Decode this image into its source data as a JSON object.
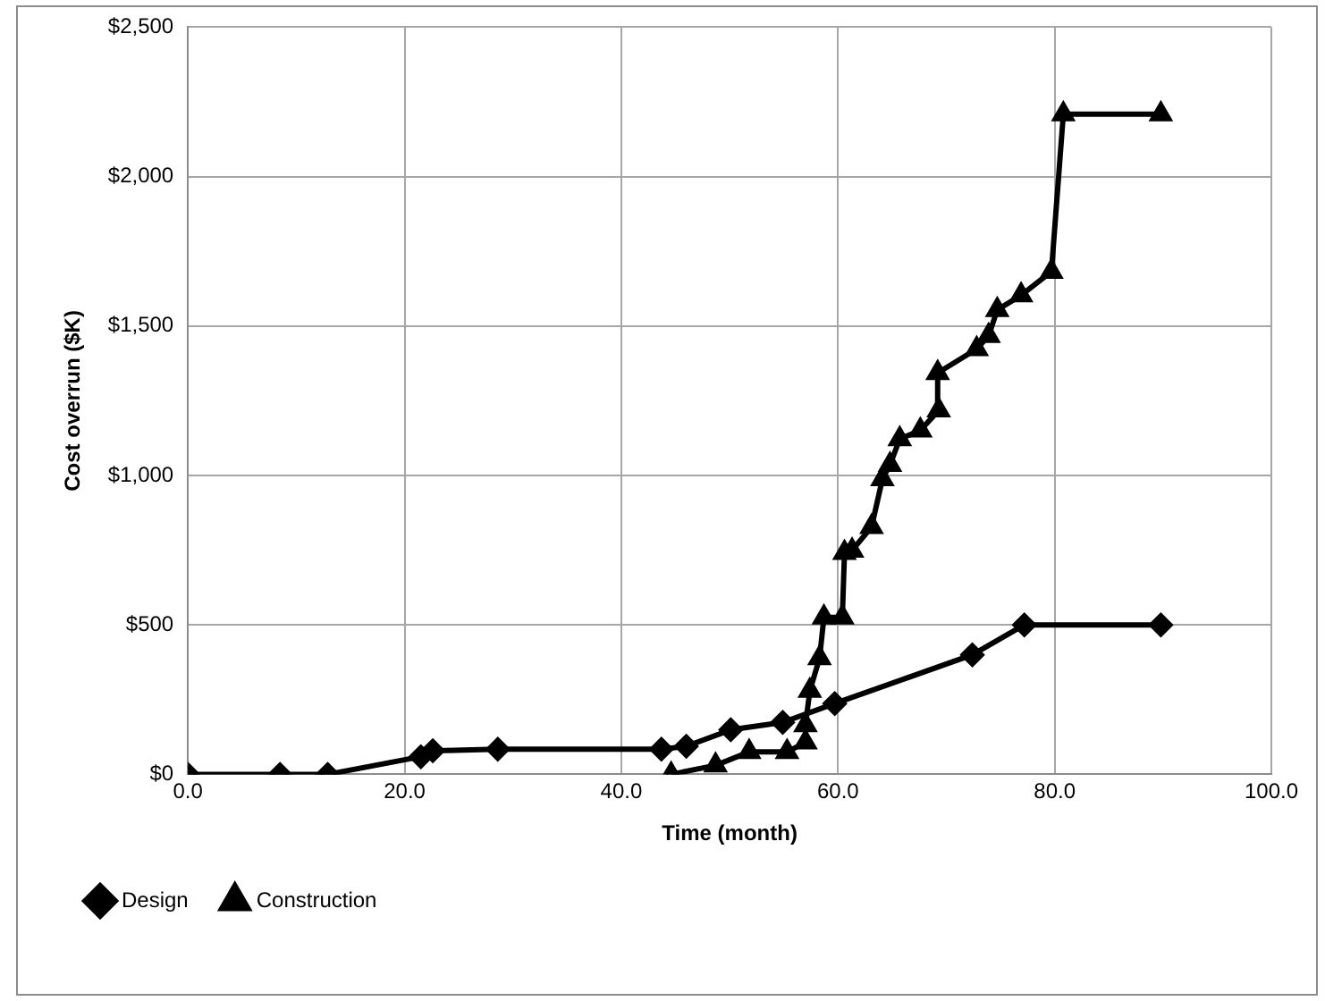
{
  "chart_data": {
    "type": "line",
    "xlabel": "Time (month)",
    "ylabel": "Cost overrun ($K)",
    "xlim": [
      0,
      100
    ],
    "xticks": [
      {
        "value": 0,
        "label": "0.0"
      },
      {
        "value": 20,
        "label": "20.0"
      },
      {
        "value": 40,
        "label": "40.0"
      },
      {
        "value": 60,
        "label": "60.0"
      },
      {
        "value": 80,
        "label": "80.0"
      },
      {
        "value": 100,
        "label": "100.0"
      }
    ],
    "ylim": [
      0,
      2500
    ],
    "yticks": [
      {
        "value": 0,
        "label": "$0"
      },
      {
        "value": 500,
        "label": "$500"
      },
      {
        "value": 1000,
        "label": "$1,000"
      },
      {
        "value": 1500,
        "label": "$1,500"
      },
      {
        "value": 2000,
        "label": "$2,000"
      },
      {
        "value": 2500,
        "label": "$2,500"
      }
    ],
    "grid": true,
    "legend": "bottom",
    "line_style": "solid",
    "series": [
      {
        "name": "Design",
        "color": "#000000",
        "marker": "diamond",
        "x": [
          0,
          8.5,
          12.9,
          21.5,
          22.6,
          28.6,
          43.7,
          46,
          50.1,
          54.9,
          59.7,
          72.4,
          77.2,
          89.8
        ],
        "values": [
          0,
          0,
          0,
          59,
          79,
          84,
          84,
          94,
          149,
          174,
          237,
          400,
          500,
          500
        ]
      },
      {
        "name": "Construction",
        "color": "#000000",
        "marker": "triangle",
        "x": [
          44.6,
          48.7,
          51.8,
          55.3,
          57,
          57,
          57.4,
          58.3,
          58.7,
          60.4,
          60.6,
          61.3,
          63.1,
          64.1,
          64.8,
          65.7,
          67.6,
          69.3,
          69.2,
          72.8,
          73.9,
          74.7,
          76.9,
          79.7,
          80.8,
          89.8
        ],
        "values": [
          0,
          30,
          75,
          75,
          107,
          165,
          280,
          389,
          525,
          525,
          741,
          749,
          828,
          988,
          1036,
          1122,
          1151,
          1218,
          1343,
          1423,
          1467,
          1554,
          1603,
          1682,
          2209,
          2209
        ]
      }
    ]
  }
}
